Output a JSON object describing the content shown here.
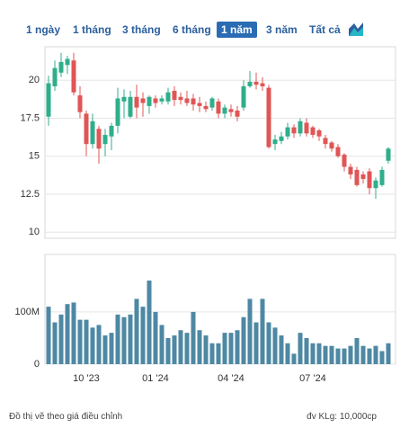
{
  "tabs": [
    "1 ngày",
    "1 tháng",
    "3 tháng",
    "6 tháng",
    "1 năm",
    "3 năm",
    "Tất cả"
  ],
  "selected_tab": 4,
  "footer": {
    "left": "Đồ thị vẽ theo giá điều chỉnh",
    "right": "đv KLg: 10,000cp"
  },
  "chart_data": [
    {
      "type": "candlestick",
      "up_color": "#2fae8b",
      "down_color": "#e05555",
      "ylim": [
        9.6,
        22.2
      ],
      "yticks": [
        10,
        12.5,
        15,
        17.5,
        20
      ],
      "grid": true,
      "open": [
        17.6,
        19.6,
        20.5,
        21.0,
        21.3,
        19.0,
        17.8,
        15.8,
        16.8,
        15.8,
        16.3,
        17.0,
        18.6,
        17.6,
        18.9,
        18.8,
        18.3,
        18.8,
        18.6,
        18.6,
        19.3,
        18.9,
        18.8,
        18.8,
        18.5,
        18.3,
        18.2,
        18.6,
        17.8,
        18.1,
        18.0,
        18.2,
        19.6,
        19.9,
        19.8,
        19.5,
        15.8,
        16.0,
        16.3,
        16.9,
        16.5,
        17.2,
        16.9,
        16.7,
        16.2,
        15.9,
        15.6,
        15.1,
        14.3,
        14.1,
        13.8,
        14.0,
        12.9,
        13.1,
        14.7
      ],
      "high": [
        20.3,
        21.3,
        21.8,
        21.6,
        21.8,
        19.6,
        18.0,
        17.8,
        17.0,
        16.8,
        17.2,
        19.5,
        19.4,
        19.3,
        19.7,
        19.2,
        19.0,
        19.0,
        19.0,
        19.5,
        19.6,
        19.2,
        19.3,
        19.1,
        18.9,
        18.6,
        18.9,
        18.8,
        18.4,
        18.4,
        18.3,
        20.0,
        20.6,
        20.5,
        20.2,
        19.7,
        16.4,
        16.6,
        17.2,
        17.1,
        17.5,
        17.5,
        17.0,
        16.8,
        16.4,
        16.0,
        15.8,
        15.2,
        14.5,
        14.3,
        14.0,
        14.2,
        13.6,
        14.3,
        15.6
      ],
      "low": [
        17.0,
        19.3,
        20.2,
        20.4,
        19.0,
        17.5,
        15.0,
        15.5,
        14.5,
        15.0,
        15.4,
        16.5,
        17.5,
        17.5,
        17.5,
        17.6,
        17.8,
        18.2,
        18.4,
        18.4,
        18.3,
        18.4,
        18.3,
        18.0,
        17.9,
        17.9,
        18.0,
        17.5,
        17.5,
        17.6,
        17.3,
        18.0,
        19.5,
        19.4,
        19.3,
        15.5,
        15.4,
        15.8,
        16.1,
        16.2,
        16.3,
        16.3,
        16.2,
        16.0,
        15.5,
        15.3,
        14.9,
        14.0,
        13.5,
        13.0,
        13.2,
        12.5,
        12.2,
        13.0,
        14.5
      ],
      "close": [
        19.8,
        20.8,
        21.2,
        21.4,
        19.2,
        17.9,
        15.8,
        17.3,
        15.5,
        16.4,
        17.0,
        18.8,
        18.9,
        18.9,
        18.2,
        18.5,
        18.9,
        18.5,
        18.8,
        19.2,
        18.7,
        18.7,
        18.5,
        18.4,
        18.3,
        18.1,
        18.8,
        17.8,
        18.2,
        17.9,
        17.6,
        19.6,
        19.9,
        19.7,
        19.6,
        15.6,
        16.1,
        16.3,
        16.9,
        16.5,
        17.3,
        16.5,
        16.4,
        16.3,
        15.8,
        15.5,
        15.0,
        14.3,
        13.8,
        13.1,
        13.5,
        12.9,
        13.4,
        14.1,
        15.5
      ]
    },
    {
      "type": "bar",
      "color": "#4e88a3",
      "categories": [
        null,
        null,
        null,
        null,
        null,
        null,
        "10 '23",
        null,
        null,
        null,
        null,
        null,
        null,
        null,
        null,
        null,
        null,
        "01 '24",
        null,
        null,
        null,
        null,
        null,
        null,
        null,
        null,
        null,
        null,
        null,
        "04 '24",
        null,
        null,
        null,
        null,
        null,
        null,
        null,
        null,
        null,
        null,
        null,
        null,
        "07 '24",
        null,
        null,
        null,
        null,
        null,
        null,
        null,
        null,
        null,
        null,
        null,
        null
      ],
      "ylim": [
        0,
        210000000
      ],
      "yticks": [
        0,
        {
          "value": 100000000,
          "label": "100M"
        }
      ],
      "grid": true,
      "values": [
        110000000,
        80000000,
        95000000,
        115000000,
        118000000,
        85000000,
        85000000,
        70000000,
        75000000,
        55000000,
        60000000,
        95000000,
        90000000,
        95000000,
        125000000,
        110000000,
        160000000,
        100000000,
        75000000,
        50000000,
        55000000,
        65000000,
        60000000,
        100000000,
        65000000,
        55000000,
        40000000,
        40000000,
        60000000,
        60000000,
        65000000,
        90000000,
        125000000,
        80000000,
        125000000,
        80000000,
        70000000,
        55000000,
        40000000,
        20000000,
        60000000,
        50000000,
        40000000,
        40000000,
        35000000,
        35000000,
        30000000,
        30000000,
        35000000,
        50000000,
        35000000,
        30000000,
        35000000,
        25000000,
        40000000
      ]
    }
  ]
}
